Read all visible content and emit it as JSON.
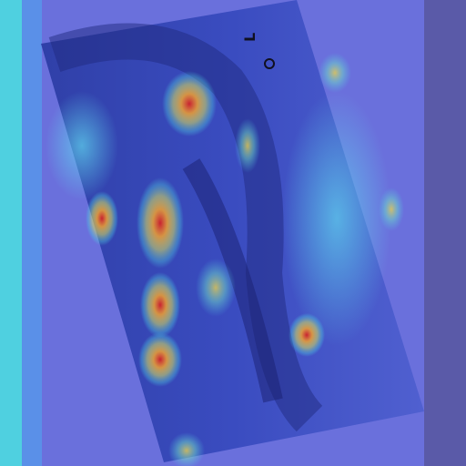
{
  "image": {
    "marker": {
      "label": "L"
    }
  }
}
